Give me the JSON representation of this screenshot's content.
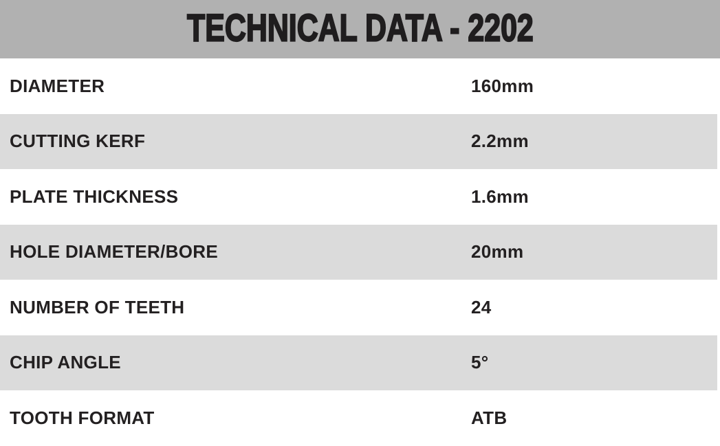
{
  "header": {
    "title": "TECHNICAL DATA - 2202",
    "background_color": "#b1b1b1",
    "text_color": "#1f1d1e"
  },
  "table": {
    "stripe_color": "#dbdbdb",
    "plain_row_color": "#ffffff",
    "label_text_color": "#232021",
    "rows": [
      {
        "label": "DIAMETER",
        "value": "160mm"
      },
      {
        "label": "CUTTING KERF",
        "value": "2.2mm"
      },
      {
        "label": "PLATE THICKNESS",
        "value": "1.6mm"
      },
      {
        "label": "HOLE DIAMETER/BORE",
        "value": "20mm"
      },
      {
        "label": "NUMBER OF TEETH",
        "value": "24"
      },
      {
        "label": "CHIP ANGLE",
        "value": "5°"
      },
      {
        "label": "TOOTH FORMAT",
        "value": "ATB"
      }
    ]
  }
}
